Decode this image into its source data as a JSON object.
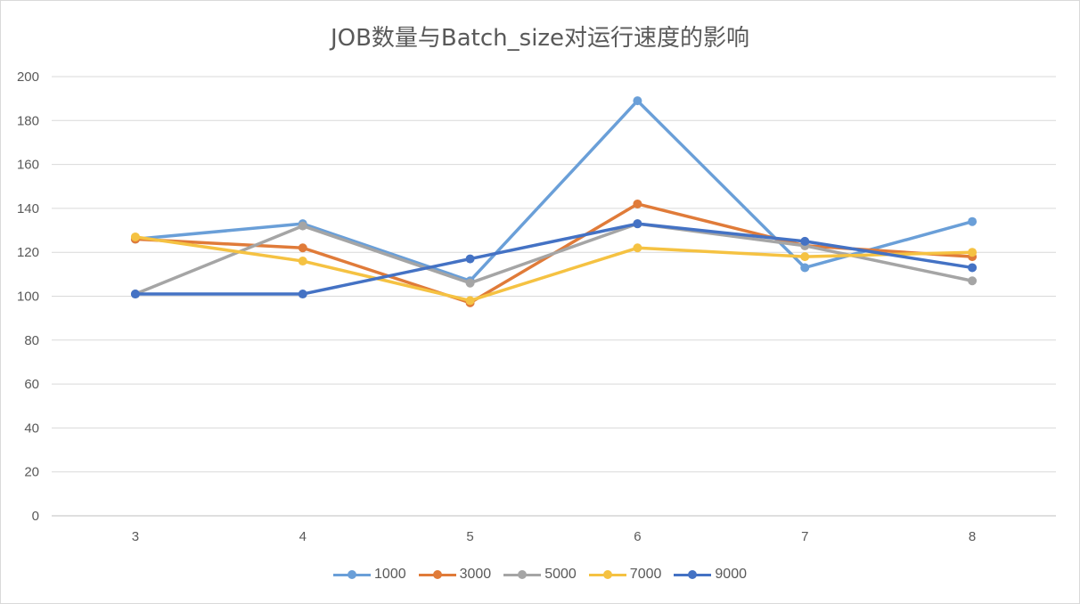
{
  "chart_data": {
    "type": "line",
    "title": "JOB数量与Batch_size对运行速度的影响",
    "xlabel": "",
    "ylabel": "",
    "categories": [
      "3",
      "4",
      "5",
      "6",
      "7",
      "8"
    ],
    "ylim": [
      0,
      200
    ],
    "yticks": [
      0,
      20,
      40,
      60,
      80,
      100,
      120,
      140,
      160,
      180,
      200
    ],
    "grid": true,
    "legend_position": "bottom",
    "series": [
      {
        "name": "1000",
        "color": "#6a9fd8",
        "values": [
          126,
          133,
          107,
          189,
          113,
          134
        ]
      },
      {
        "name": "3000",
        "color": "#e07b39",
        "values": [
          126,
          122,
          97,
          142,
          123,
          118
        ]
      },
      {
        "name": "5000",
        "color": "#a5a5a5",
        "values": [
          101,
          132,
          106,
          133,
          123,
          107
        ]
      },
      {
        "name": "7000",
        "color": "#f5c242",
        "values": [
          127,
          116,
          98,
          122,
          118,
          120
        ]
      },
      {
        "name": "9000",
        "color": "#4472c4",
        "values": [
          101,
          101,
          117,
          133,
          125,
          113
        ]
      }
    ]
  }
}
